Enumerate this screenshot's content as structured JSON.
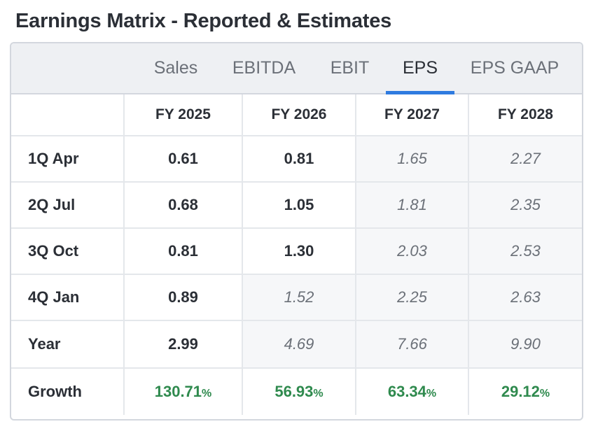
{
  "title": "Earnings Matrix - Reported & Estimates",
  "tabs": [
    "Sales",
    "EBITDA",
    "EBIT",
    "EPS",
    "EPS GAAP"
  ],
  "active_tab": "EPS",
  "columns": [
    "FY 2025",
    "FY 2026",
    "FY 2027",
    "FY 2028"
  ],
  "rows": [
    {
      "label": "1Q Apr",
      "cells": [
        {
          "v": "0.61",
          "est": false
        },
        {
          "v": "0.81",
          "est": false
        },
        {
          "v": "1.65",
          "est": true
        },
        {
          "v": "2.27",
          "est": true
        }
      ]
    },
    {
      "label": "2Q Jul",
      "cells": [
        {
          "v": "0.68",
          "est": false
        },
        {
          "v": "1.05",
          "est": false
        },
        {
          "v": "1.81",
          "est": true
        },
        {
          "v": "2.35",
          "est": true
        }
      ]
    },
    {
      "label": "3Q Oct",
      "cells": [
        {
          "v": "0.81",
          "est": false
        },
        {
          "v": "1.30",
          "est": false
        },
        {
          "v": "2.03",
          "est": true
        },
        {
          "v": "2.53",
          "est": true
        }
      ]
    },
    {
      "label": "4Q Jan",
      "cells": [
        {
          "v": "0.89",
          "est": false
        },
        {
          "v": "1.52",
          "est": true
        },
        {
          "v": "2.25",
          "est": true
        },
        {
          "v": "2.63",
          "est": true
        }
      ]
    }
  ],
  "year": {
    "label": "Year",
    "cells": [
      {
        "v": "2.99",
        "est": false
      },
      {
        "v": "4.69",
        "est": true
      },
      {
        "v": "7.66",
        "est": true
      },
      {
        "v": "9.90",
        "est": true
      }
    ]
  },
  "growth": {
    "label": "Growth",
    "cells": [
      "130.71",
      "56.93",
      "63.34",
      "29.12"
    ],
    "unit": "%"
  },
  "colors": {
    "accent": "#2f7be0",
    "positive": "#2f8a4e",
    "estimate_bg": "#f6f7f9"
  }
}
